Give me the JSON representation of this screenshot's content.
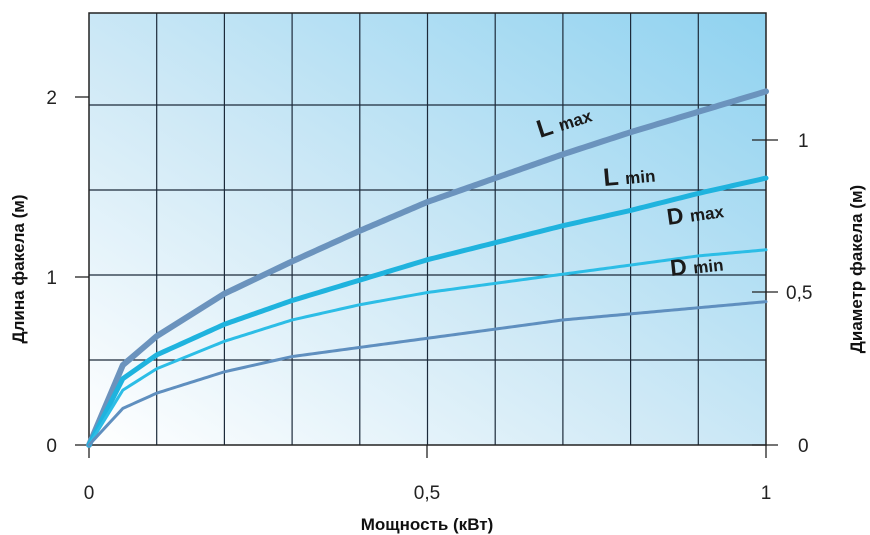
{
  "chart_data": {
    "type": "line",
    "xlabel": "Мощность (кВт)",
    "ylabel_left": "Длина факела (м)",
    "ylabel_right": "Диаметр факела (м)",
    "xlim": [
      0,
      1
    ],
    "ylim_left": [
      0,
      2.4
    ],
    "ylim_right": [
      0,
      1.2
    ],
    "x_ticks": [
      "0",
      "0,5",
      "1"
    ],
    "y_ticks_left": [
      "0",
      "1",
      "2"
    ],
    "y_ticks_right": [
      "0",
      "0,5",
      "1"
    ],
    "grid": true,
    "series": [
      {
        "name": "L max",
        "axis": "left",
        "color": "#6b93bd",
        "x": [
          0,
          0.05,
          0.1,
          0.2,
          0.3,
          0.4,
          0.5,
          0.6,
          0.7,
          0.8,
          0.9,
          1.0
        ],
        "y": [
          0,
          0.47,
          0.64,
          0.89,
          1.08,
          1.26,
          1.43,
          1.57,
          1.71,
          1.84,
          1.96,
          2.08
        ]
      },
      {
        "name": "L min",
        "axis": "left",
        "color": "#1fb3de",
        "x": [
          0,
          0.05,
          0.1,
          0.2,
          0.3,
          0.4,
          0.5,
          0.6,
          0.7,
          0.8,
          0.9,
          1.0
        ],
        "y": [
          0,
          0.39,
          0.53,
          0.71,
          0.85,
          0.97,
          1.09,
          1.19,
          1.29,
          1.38,
          1.48,
          1.57
        ]
      },
      {
        "name": "D max",
        "axis": "right",
        "color": "#2cbde6",
        "x": [
          0,
          0.05,
          0.1,
          0.2,
          0.3,
          0.4,
          0.5,
          0.6,
          0.7,
          0.8,
          0.9,
          1.0
        ],
        "y": [
          0,
          0.18,
          0.25,
          0.34,
          0.41,
          0.46,
          0.5,
          0.53,
          0.56,
          0.59,
          0.62,
          0.64
        ]
      },
      {
        "name": "D min",
        "axis": "right",
        "color": "#5f8fbf",
        "x": [
          0,
          0.05,
          0.1,
          0.2,
          0.3,
          0.4,
          0.5,
          0.6,
          0.7,
          0.8,
          0.9,
          1.0
        ],
        "y": [
          0,
          0.12,
          0.17,
          0.24,
          0.29,
          0.32,
          0.35,
          0.38,
          0.41,
          0.43,
          0.45,
          0.47
        ]
      }
    ]
  }
}
